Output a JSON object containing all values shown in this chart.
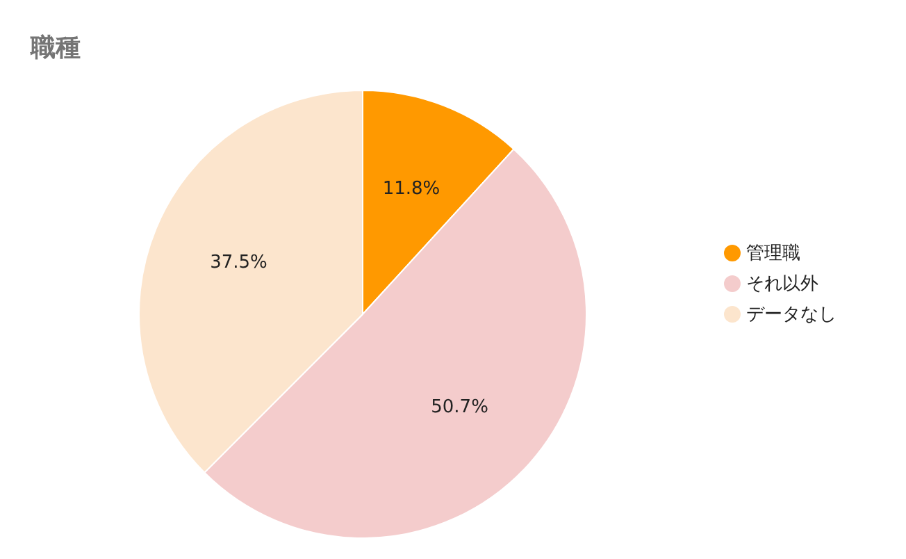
{
  "chart_data": {
    "type": "pie",
    "title": "職種",
    "categories": [
      "管理職",
      "それ以外",
      "データなし"
    ],
    "values": [
      11.8,
      50.7,
      37.5
    ],
    "colors": [
      "#ff9900",
      "#f4cccc",
      "#fce5cd"
    ],
    "value_labels": [
      "11.8%",
      "50.7%",
      "37.5%"
    ],
    "legend": "right"
  }
}
